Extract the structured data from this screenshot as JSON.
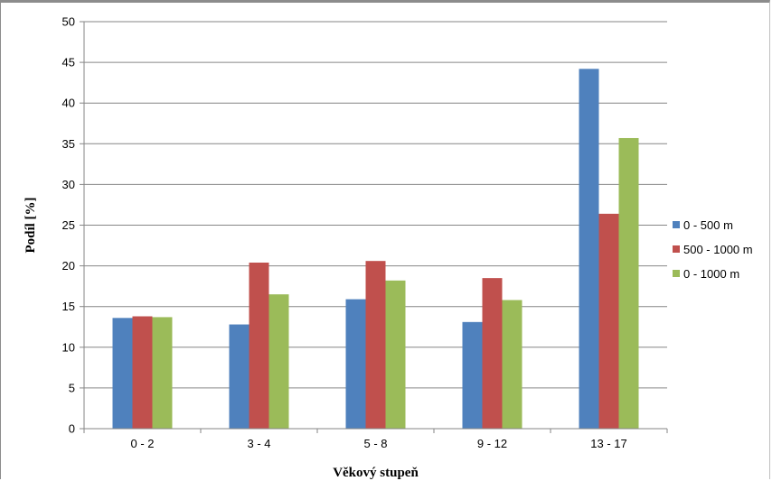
{
  "chart_data": {
    "type": "bar",
    "categories": [
      "0 - 2",
      "3 - 4",
      "5 - 8",
      "9 - 12",
      "13 - 17"
    ],
    "series": [
      {
        "name": "0 - 500 m",
        "color": "#4f81bd",
        "values": [
          13.6,
          12.8,
          15.9,
          13.1,
          44.2
        ]
      },
      {
        "name": "500 - 1000 m",
        "color": "#c0504d",
        "values": [
          13.8,
          20.4,
          20.6,
          18.5,
          26.4
        ]
      },
      {
        "name": "0 - 1000 m",
        "color": "#9bbb59",
        "values": [
          13.7,
          16.5,
          18.2,
          15.8,
          35.7
        ]
      }
    ],
    "xlabel": "Věkový stupeň",
    "ylabel": "Podíl [%]",
    "ylim": [
      0,
      50
    ],
    "yticks": [
      0,
      5,
      10,
      15,
      20,
      25,
      30,
      35,
      40,
      45,
      50
    ],
    "grid": true,
    "legend_position": "right"
  }
}
